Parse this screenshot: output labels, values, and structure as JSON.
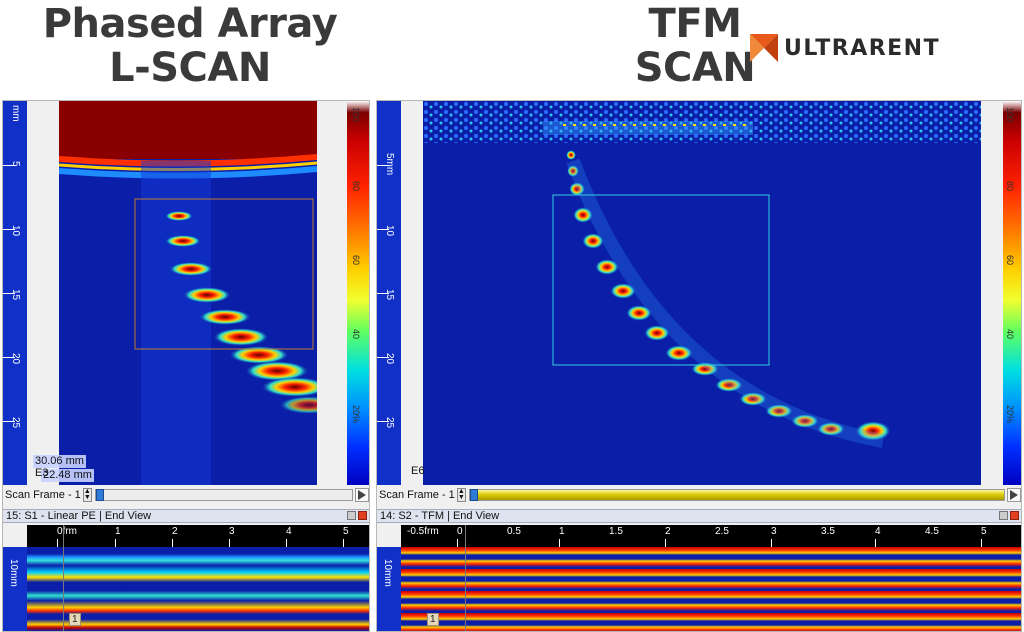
{
  "headings": {
    "left": [
      "Phased Array",
      "L-SCAN"
    ],
    "right": [
      "TFM",
      "SCAN"
    ]
  },
  "brand": {
    "name": "ULTRARENT",
    "accent": "#e85a1a"
  },
  "left_panel": {
    "ruler_unit": "mm",
    "ruler_labels": [
      "5",
      "10",
      "15",
      "20",
      "25"
    ],
    "colorbar_labels": [
      "100",
      "80",
      "60",
      "40",
      "20%"
    ],
    "readout_1": "30.06 mm",
    "readout_2": "22.48 mm",
    "element_label": "E3",
    "frame_label": "Scan Frame - 1",
    "view_title": "15: S1 - Linear PE | End View",
    "h_ruler_labels": [
      "0frm",
      "1",
      "2",
      "3",
      "4",
      "5"
    ],
    "v_ruler_label": "10mm",
    "marker": "1"
  },
  "right_panel": {
    "ruler_unit": "mm",
    "ruler_labels": [
      "5mm",
      "10",
      "15",
      "20",
      "25"
    ],
    "colorbar_labels": [
      "100",
      "80",
      "60",
      "40",
      "20%"
    ],
    "element_label": "E6",
    "frame_label": "Scan Frame - 1",
    "view_title": "14: S2 - TFM | End View",
    "h_ruler_labels": [
      "-0.5frm",
      "0",
      "0.5",
      "1",
      "1.5",
      "2",
      "2.5",
      "3",
      "3.5",
      "4",
      "4.5",
      "5"
    ],
    "v_ruler_label": "10mm",
    "marker": "1"
  },
  "colors": {
    "scan_background": "#0a1ea8",
    "ruler_blue": "#1030c8",
    "slider_yellow": "#d8c800"
  }
}
